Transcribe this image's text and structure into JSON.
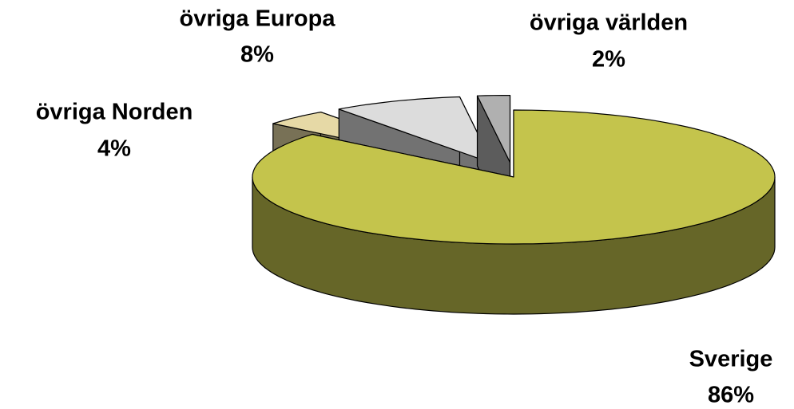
{
  "chart_data": {
    "type": "pie3d",
    "categories": [
      "Sverige",
      "övriga Norden",
      "övriga Europa",
      "övriga världen"
    ],
    "values": [
      86,
      4,
      8,
      2
    ],
    "value_labels": [
      "86%",
      "4%",
      "8%",
      "2%"
    ],
    "colors": [
      "#c4c44c",
      "#e6d9a6",
      "#dcdcdc",
      "#b0b0b0"
    ]
  }
}
